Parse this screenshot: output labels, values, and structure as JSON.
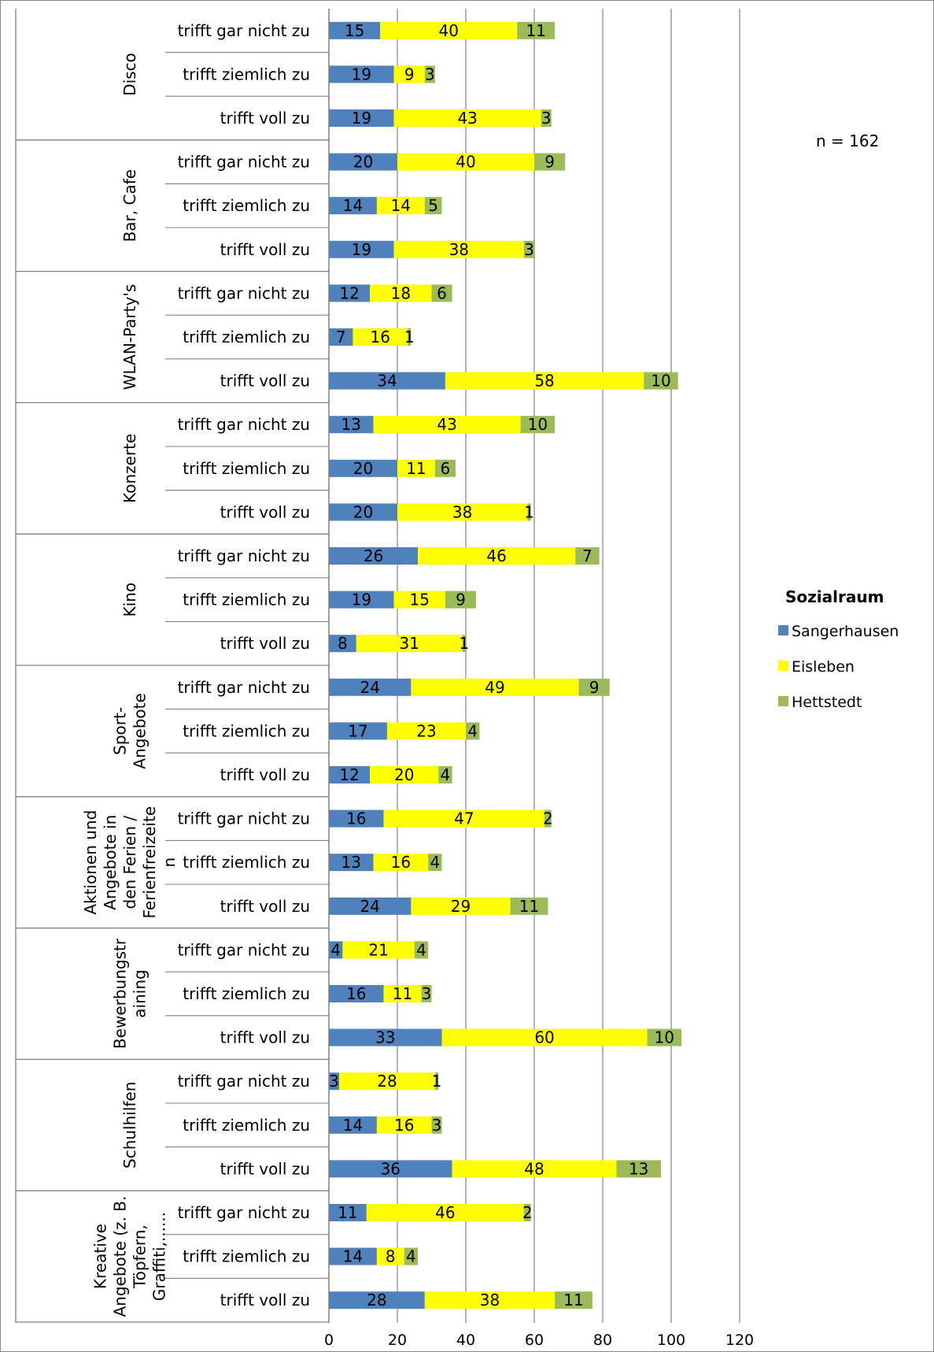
{
  "chart_data": {
    "type": "bar",
    "orientation": "horizontal",
    "stacked": true,
    "annotation": "n = 162",
    "legend_title": "Sozialraum",
    "legend_position": "right",
    "grid": true,
    "xlim": [
      0,
      120
    ],
    "x_ticks": [
      0,
      20,
      40,
      60,
      80,
      100,
      120
    ],
    "colors": {
      "Sangerhausen": "#4F81BD",
      "Eisleben": "#FFFF00",
      "Hettstedt": "#9BBB59"
    },
    "groups": [
      {
        "name": "Disco",
        "label_lines": [
          "Disco"
        ],
        "categories": [
          {
            "label": "trifft gar nicht zu",
            "values": [
              15,
              40,
              11
            ]
          },
          {
            "label": "trifft ziemlich zu",
            "values": [
              19,
              9,
              3
            ]
          },
          {
            "label": "trifft voll zu",
            "values": [
              19,
              43,
              3
            ]
          }
        ]
      },
      {
        "name": "Bar, Cafe",
        "label_lines": [
          "Bar, Cafe"
        ],
        "categories": [
          {
            "label": "trifft gar nicht zu",
            "values": [
              20,
              40,
              9
            ]
          },
          {
            "label": "trifft ziemlich zu",
            "values": [
              14,
              14,
              5
            ]
          },
          {
            "label": "trifft voll zu",
            "values": [
              19,
              38,
              3
            ]
          }
        ]
      },
      {
        "name": "WLAN-Party's",
        "label_lines": [
          "WLAN-Party's"
        ],
        "categories": [
          {
            "label": "trifft gar nicht zu",
            "values": [
              12,
              18,
              6
            ]
          },
          {
            "label": "trifft ziemlich zu",
            "values": [
              7,
              16,
              1
            ]
          },
          {
            "label": "trifft voll zu",
            "values": [
              34,
              58,
              10
            ]
          }
        ]
      },
      {
        "name": "Konzerte",
        "label_lines": [
          "Konzerte"
        ],
        "categories": [
          {
            "label": "trifft gar nicht zu",
            "values": [
              13,
              43,
              10
            ]
          },
          {
            "label": "trifft ziemlich zu",
            "values": [
              20,
              11,
              6
            ]
          },
          {
            "label": "trifft voll zu",
            "values": [
              20,
              38,
              1
            ]
          }
        ]
      },
      {
        "name": "Kino",
        "label_lines": [
          "Kino"
        ],
        "categories": [
          {
            "label": "trifft gar nicht zu",
            "values": [
              26,
              46,
              7
            ]
          },
          {
            "label": "trifft ziemlich zu",
            "values": [
              19,
              15,
              9
            ]
          },
          {
            "label": "trifft voll zu",
            "values": [
              8,
              31,
              1
            ]
          }
        ]
      },
      {
        "name": "Sport-Angebote",
        "label_lines": [
          "Sport-",
          "Angebote"
        ],
        "categories": [
          {
            "label": "trifft gar nicht zu",
            "values": [
              24,
              49,
              9
            ]
          },
          {
            "label": "trifft ziemlich zu",
            "values": [
              17,
              23,
              4
            ]
          },
          {
            "label": "trifft voll zu",
            "values": [
              12,
              20,
              4
            ]
          }
        ]
      },
      {
        "name": "Aktionen und Angebote in den Ferien / Ferienfreizeiten",
        "label_lines": [
          "Aktionen und",
          "Angebote in",
          "den Ferien /",
          "Ferienfreizeite",
          "n"
        ],
        "categories": [
          {
            "label": "trifft gar nicht zu",
            "values": [
              16,
              47,
              2
            ]
          },
          {
            "label": "trifft ziemlich zu",
            "values": [
              13,
              16,
              4
            ]
          },
          {
            "label": "trifft voll zu",
            "values": [
              24,
              29,
              11
            ]
          }
        ]
      },
      {
        "name": "Bewerbungstraining",
        "label_lines": [
          "Bewerbungstr",
          "aining"
        ],
        "categories": [
          {
            "label": "trifft gar nicht zu",
            "values": [
              4,
              21,
              4
            ]
          },
          {
            "label": "trifft ziemlich zu",
            "values": [
              16,
              11,
              3
            ]
          },
          {
            "label": "trifft voll zu",
            "values": [
              33,
              60,
              10
            ]
          }
        ]
      },
      {
        "name": "Schulhilfen",
        "label_lines": [
          "Schulhilfen"
        ],
        "categories": [
          {
            "label": "trifft gar nicht zu",
            "values": [
              3,
              28,
              1
            ]
          },
          {
            "label": "trifft ziemlich zu",
            "values": [
              14,
              16,
              3
            ]
          },
          {
            "label": "trifft voll zu",
            "values": [
              36,
              48,
              13
            ]
          }
        ]
      },
      {
        "name": "Kreative Angebote (z. B. Töpfern, Graffiti,......",
        "label_lines": [
          "Kreative",
          "Angebote (z. B.",
          "Töpfern,",
          "Graffiti,......"
        ],
        "categories": [
          {
            "label": "trifft gar nicht zu",
            "values": [
              11,
              46,
              2
            ]
          },
          {
            "label": "trifft ziemlich zu",
            "values": [
              14,
              8,
              4
            ]
          },
          {
            "label": "trifft voll zu",
            "values": [
              28,
              38,
              11
            ]
          }
        ]
      }
    ],
    "series": [
      {
        "name": "Sangerhausen"
      },
      {
        "name": "Eisleben"
      },
      {
        "name": "Hettstedt"
      }
    ]
  }
}
